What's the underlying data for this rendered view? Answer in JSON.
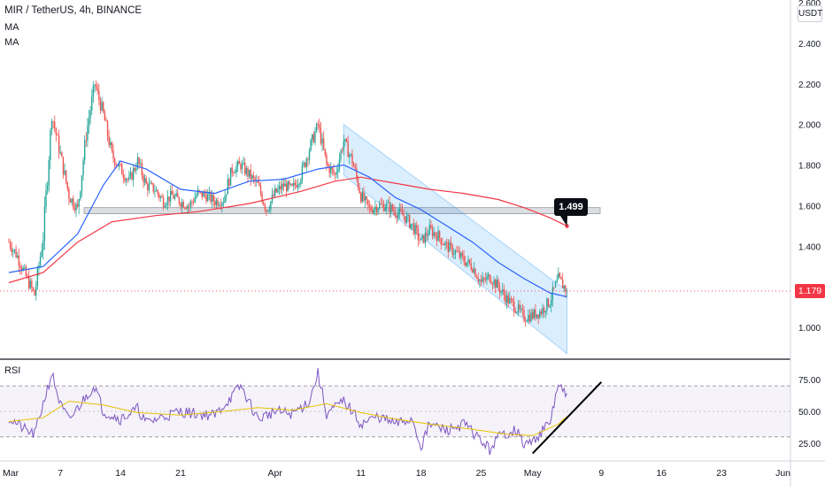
{
  "header": {
    "title": "MIR / TetherUS, 4h, BINANCE",
    "ma1_label": "MA",
    "ma2_label": "MA",
    "rsi_label": "RSI",
    "unit": "USDT"
  },
  "colors": {
    "up": "#26a69a",
    "down": "#ef5350",
    "ma_fast": "#2962ff",
    "ma_slow": "#f23645",
    "channel": "#2196f3",
    "rsi_line": "#7e57c2",
    "rsi_ma": "#e6c200",
    "support_zone": "#b2b5be",
    "price_tag": "#f23645",
    "trendline": "#000000"
  },
  "current_price": "1.179",
  "callout_label": "1.499",
  "chart_data": [
    {
      "type": "candlestick",
      "x_ticks": [
        "Mar",
        "7",
        "14",
        "21",
        "Apr",
        "11",
        "18",
        "25",
        "May",
        "9",
        "16",
        "23",
        "Jun"
      ],
      "y_ticks": [
        "1.000",
        "1.200",
        "1.400",
        "1.600",
        "1.800",
        "2.000",
        "2.200",
        "2.400",
        "2.600"
      ],
      "ylim": [
        0.86,
        2.62
      ],
      "grid": false,
      "price_path": [
        [
          "Mar 1",
          1.42
        ],
        [
          "Mar 2",
          1.35
        ],
        [
          "Mar 3",
          1.25
        ],
        [
          "Mar 4",
          1.16
        ],
        [
          "Mar 5",
          1.45
        ],
        [
          "Mar 6",
          2.05
        ],
        [
          "Mar 7",
          1.85
        ],
        [
          "Mar 8",
          1.65
        ],
        [
          "Mar 9",
          1.58
        ],
        [
          "Mar 10",
          1.95
        ],
        [
          "Mar 11",
          2.2
        ],
        [
          "Mar 12",
          2.05
        ],
        [
          "Mar 13",
          1.85
        ],
        [
          "Mar 14",
          1.78
        ],
        [
          "Mar 15",
          1.72
        ],
        [
          "Mar 16",
          1.82
        ],
        [
          "Mar 17",
          1.7
        ],
        [
          "Mar 18",
          1.68
        ],
        [
          "Mar 19",
          1.62
        ],
        [
          "Mar 20",
          1.65
        ],
        [
          "Mar 21",
          1.62
        ],
        [
          "Mar 22",
          1.6
        ],
        [
          "Mar 23",
          1.66
        ],
        [
          "Mar 24",
          1.65
        ],
        [
          "Mar 25",
          1.62
        ],
        [
          "Mar 26",
          1.63
        ],
        [
          "Mar 27",
          1.78
        ],
        [
          "Mar 28",
          1.8
        ],
        [
          "Mar 29",
          1.75
        ],
        [
          "Mar 30",
          1.7
        ],
        [
          "Mar 31",
          1.58
        ],
        [
          "Apr 1",
          1.66
        ],
        [
          "Apr 2",
          1.7
        ],
        [
          "Apr 3",
          1.68
        ],
        [
          "Apr 4",
          1.75
        ],
        [
          "Apr 5",
          1.88
        ],
        [
          "Apr 6",
          2.0
        ],
        [
          "Apr 7",
          1.8
        ],
        [
          "Apr 8",
          1.75
        ],
        [
          "Apr 9",
          1.92
        ],
        [
          "Apr 10",
          1.82
        ],
        [
          "Apr 11",
          1.65
        ],
        [
          "Apr 12",
          1.58
        ],
        [
          "Apr 13",
          1.6
        ],
        [
          "Apr 14",
          1.6
        ],
        [
          "Apr 15",
          1.57
        ],
        [
          "Apr 16",
          1.55
        ],
        [
          "Apr 17",
          1.5
        ],
        [
          "Apr 18",
          1.42
        ],
        [
          "Apr 19",
          1.48
        ],
        [
          "Apr 20",
          1.45
        ],
        [
          "Apr 21",
          1.4
        ],
        [
          "Apr 22",
          1.37
        ],
        [
          "Apr 23",
          1.33
        ],
        [
          "Apr 24",
          1.3
        ],
        [
          "Apr 25",
          1.22
        ],
        [
          "Apr 26",
          1.25
        ],
        [
          "Apr 27",
          1.2
        ],
        [
          "Apr 28",
          1.14
        ],
        [
          "Apr 29",
          1.1
        ],
        [
          "Apr 30",
          1.05
        ],
        [
          "May 1",
          1.06
        ],
        [
          "May 2",
          1.08
        ],
        [
          "May 3",
          1.13
        ],
        [
          "May 4",
          1.24
        ],
        [
          "May 5",
          1.179
        ]
      ],
      "ma_fast_path": [
        [
          "Mar 1",
          1.27
        ],
        [
          "Mar 5",
          1.3
        ],
        [
          "Mar 9",
          1.46
        ],
        [
          "Mar 12",
          1.7
        ],
        [
          "Mar 14",
          1.82
        ],
        [
          "Mar 17",
          1.78
        ],
        [
          "Mar 21",
          1.68
        ],
        [
          "Mar 25",
          1.66
        ],
        [
          "Mar 29",
          1.72
        ],
        [
          "Apr 2",
          1.73
        ],
        [
          "Apr 6",
          1.78
        ],
        [
          "Apr 9",
          1.8
        ],
        [
          "Apr 12",
          1.74
        ],
        [
          "Apr 15",
          1.64
        ],
        [
          "Apr 18",
          1.58
        ],
        [
          "Apr 21",
          1.5
        ],
        [
          "Apr 24",
          1.42
        ],
        [
          "Apr 27",
          1.32
        ],
        [
          "Apr 30",
          1.24
        ],
        [
          "May 3",
          1.17
        ],
        [
          "May 5",
          1.15
        ]
      ],
      "ma_slow_path": [
        [
          "Mar 1",
          1.22
        ],
        [
          "Mar 5",
          1.27
        ],
        [
          "Mar 9",
          1.42
        ],
        [
          "Mar 13",
          1.52
        ],
        [
          "Mar 18",
          1.55
        ],
        [
          "Mar 23",
          1.57
        ],
        [
          "Mar 29",
          1.61
        ],
        [
          "Apr 4",
          1.67
        ],
        [
          "Apr 8",
          1.72
        ],
        [
          "Apr 11",
          1.74
        ],
        [
          "Apr 15",
          1.71
        ],
        [
          "Apr 19",
          1.68
        ],
        [
          "Apr 23",
          1.66
        ],
        [
          "Apr 27",
          1.63
        ],
        [
          "Apr 30",
          1.59
        ],
        [
          "May 3",
          1.54
        ],
        [
          "May 5",
          1.499
        ]
      ],
      "support_zone": [
        1.56,
        1.59
      ],
      "descending_channel": {
        "upper": [
          [
            "Apr 9",
            2.0
          ],
          [
            "May 5",
            1.18
          ]
        ],
        "lower": [
          [
            "Apr 9",
            1.75
          ],
          [
            "May 5",
            0.87
          ]
        ]
      }
    },
    {
      "type": "line",
      "title": "RSI",
      "y_ticks": [
        "25.00",
        "50.00",
        "75.00"
      ],
      "levels": [
        30,
        50,
        70
      ],
      "ylim": [
        12,
        88
      ],
      "rsi_path": [
        [
          "Mar 1",
          45
        ],
        [
          "Mar 3",
          35
        ],
        [
          "Mar 4",
          32
        ],
        [
          "Mar 6",
          80
        ],
        [
          "Mar 7",
          55
        ],
        [
          "Mar 8",
          43
        ],
        [
          "Mar 10",
          62
        ],
        [
          "Mar 11",
          70
        ],
        [
          "Mar 12",
          50
        ],
        [
          "Mar 14",
          44
        ],
        [
          "Mar 16",
          52
        ],
        [
          "Mar 17",
          41
        ],
        [
          "Mar 19",
          46
        ],
        [
          "Mar 21",
          50
        ],
        [
          "Mar 23",
          48
        ],
        [
          "Mar 25",
          47
        ],
        [
          "Mar 27",
          62
        ],
        [
          "Mar 28",
          70
        ],
        [
          "Mar 30",
          44
        ],
        [
          "Apr 1",
          50
        ],
        [
          "Apr 3",
          48
        ],
        [
          "Apr 5",
          58
        ],
        [
          "Apr 6",
          80
        ],
        [
          "Apr 7",
          48
        ],
        [
          "Apr 9",
          58
        ],
        [
          "Apr 10",
          50
        ],
        [
          "Apr 11",
          40
        ],
        [
          "Apr 13",
          46
        ],
        [
          "Apr 15",
          40
        ],
        [
          "Apr 17",
          44
        ],
        [
          "Apr 18",
          22
        ],
        [
          "Apr 19",
          40
        ],
        [
          "Apr 21",
          35
        ],
        [
          "Apr 23",
          40
        ],
        [
          "Apr 24",
          34
        ],
        [
          "Apr 26",
          20
        ],
        [
          "Apr 27",
          30
        ],
        [
          "Apr 28",
          33
        ],
        [
          "Apr 29",
          36
        ],
        [
          "Apr 30",
          24
        ],
        [
          "May 1",
          26
        ],
        [
          "May 2",
          34
        ],
        [
          "May 3",
          40
        ],
        [
          "May 4",
          72
        ],
        [
          "May 5",
          60
        ]
      ],
      "rsi_ma_path": [
        [
          "Mar 1",
          42
        ],
        [
          "Mar 5",
          45
        ],
        [
          "Mar 8",
          58
        ],
        [
          "Mar 12",
          55
        ],
        [
          "Mar 16",
          49
        ],
        [
          "Mar 21",
          47
        ],
        [
          "Mar 26",
          50
        ],
        [
          "Mar 30",
          53
        ],
        [
          "Apr 3",
          51
        ],
        [
          "Apr 7",
          56
        ],
        [
          "Apr 11",
          49
        ],
        [
          "Apr 15",
          44
        ],
        [
          "Apr 19",
          40
        ],
        [
          "Apr 24",
          36
        ],
        [
          "Apr 28",
          32
        ],
        [
          "May 1",
          31
        ],
        [
          "May 4",
          40
        ],
        [
          "May 5",
          46
        ]
      ],
      "trendline": [
        [
          "May 1",
          17
        ],
        [
          "May 9",
          73
        ]
      ]
    }
  ]
}
